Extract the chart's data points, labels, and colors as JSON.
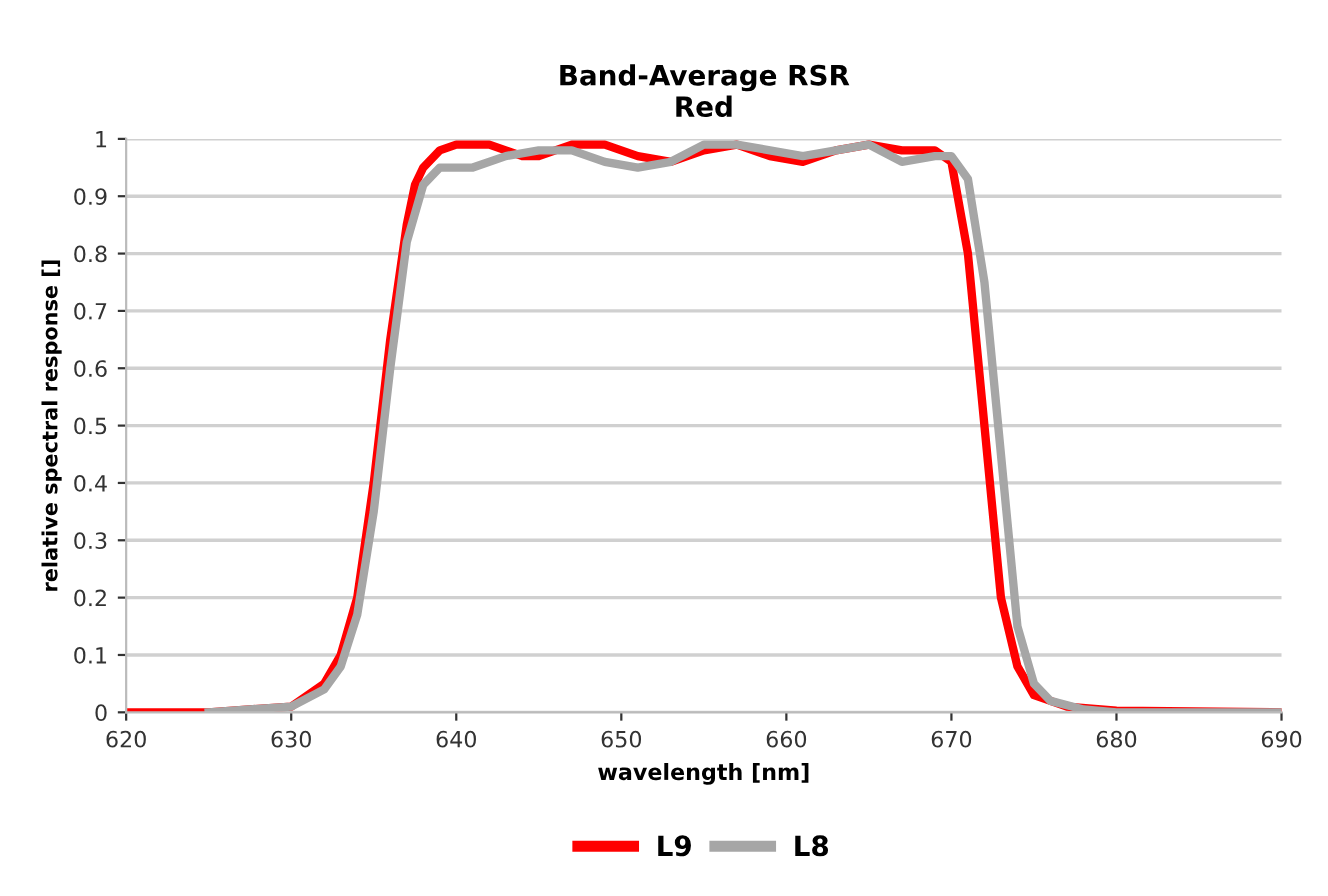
{
  "chart_data": {
    "type": "line",
    "title": "Band-Average RSR\nRed",
    "xlabel": "wavelength [nm]",
    "ylabel": "relative spectral response []",
    "xlim": [
      620,
      690
    ],
    "xticks": [
      620,
      630,
      640,
      650,
      660,
      670,
      680,
      690
    ],
    "ylim": [
      0,
      1
    ],
    "yticks": [
      0,
      0.1,
      0.2,
      0.3,
      0.4,
      0.5,
      0.6,
      0.7,
      0.8,
      0.9,
      1
    ],
    "grid": "y",
    "legend": "bottom",
    "line_style": "solid",
    "marker": "none",
    "series": [
      {
        "name": "L9",
        "color": "#ff0000",
        "x": [
          620,
          625,
          630,
          632,
          633,
          634,
          635,
          636,
          637,
          637.5,
          638,
          639,
          640,
          642,
          644,
          645,
          647,
          649,
          651,
          653,
          655,
          657,
          659,
          661,
          663,
          665,
          667,
          669,
          670,
          671,
          672,
          673,
          674,
          675,
          677,
          680,
          690
        ],
        "values": [
          0,
          0,
          0.01,
          0.05,
          0.1,
          0.2,
          0.4,
          0.65,
          0.85,
          0.92,
          0.95,
          0.98,
          0.99,
          0.99,
          0.97,
          0.97,
          0.99,
          0.99,
          0.97,
          0.96,
          0.98,
          0.99,
          0.97,
          0.96,
          0.98,
          0.99,
          0.98,
          0.98,
          0.96,
          0.8,
          0.5,
          0.2,
          0.08,
          0.03,
          0.01,
          0.003,
          0
        ]
      },
      {
        "name": "L8",
        "color": "#a6a6a6",
        "x": [
          625,
          630,
          632,
          633,
          634,
          635,
          636,
          637,
          638,
          639,
          641,
          643,
          645,
          647,
          649,
          651,
          653,
          655,
          657,
          659,
          661,
          663,
          665,
          667,
          669,
          670,
          671,
          672,
          673,
          674,
          675,
          676,
          678,
          680,
          690
        ],
        "values": [
          0,
          0.01,
          0.04,
          0.08,
          0.17,
          0.35,
          0.6,
          0.82,
          0.92,
          0.95,
          0.95,
          0.97,
          0.98,
          0.98,
          0.96,
          0.95,
          0.96,
          0.99,
          0.99,
          0.98,
          0.97,
          0.98,
          0.99,
          0.96,
          0.97,
          0.97,
          0.93,
          0.75,
          0.45,
          0.15,
          0.05,
          0.02,
          0.005,
          0,
          0
        ]
      }
    ]
  }
}
